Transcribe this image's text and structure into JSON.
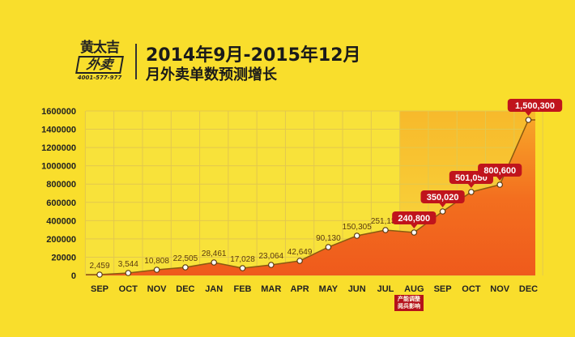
{
  "logo": {
    "line1": "黄太吉",
    "line2": "外卖",
    "phone": "4001-577-977"
  },
  "header": {
    "title": "2014年9月-2015年12月",
    "subtitle": "月外卖单数预测增长"
  },
  "note": {
    "line1": "产能调整",
    "line2": "阅兵影响"
  },
  "colors": {
    "background": "#f9de2c",
    "area": "#f2621e",
    "line": "#8a5a10",
    "highlight_label": "#c0141c",
    "forecast_shade": "#f7b52a"
  },
  "chart_data": {
    "type": "area",
    "title": "",
    "xlabel": "",
    "ylabel": "",
    "categories": [
      "SEP",
      "OCT",
      "NOV",
      "DEC",
      "JAN",
      "FEB",
      "MAR",
      "APR",
      "MAY",
      "JUN",
      "JUL",
      "AUG",
      "SEP",
      "OCT",
      "NOV",
      "DEC"
    ],
    "values": [
      2459,
      3544,
      10808,
      22505,
      28461,
      17028,
      23064,
      42649,
      90130,
      150305,
      251139,
      240800,
      350020,
      501050,
      800600,
      1500300
    ],
    "data_labels": [
      "2,459",
      "3,544",
      "10,808",
      "22,505",
      "28,461",
      "17,028",
      "23,064",
      "42,649",
      "90,130",
      "150,305",
      "251,139",
      "240,800",
      "350,020",
      "501,050",
      "800,600",
      "1,500,300"
    ],
    "highlighted_from_index": 11,
    "y_tick_labels": [
      "0",
      "20000",
      "200000",
      "400000",
      "600000",
      "800000",
      "1000000",
      "1200000",
      "1400000",
      "1600000"
    ],
    "ylim": [
      0,
      1600000
    ],
    "grid": true,
    "note_under_category_index": 11
  }
}
